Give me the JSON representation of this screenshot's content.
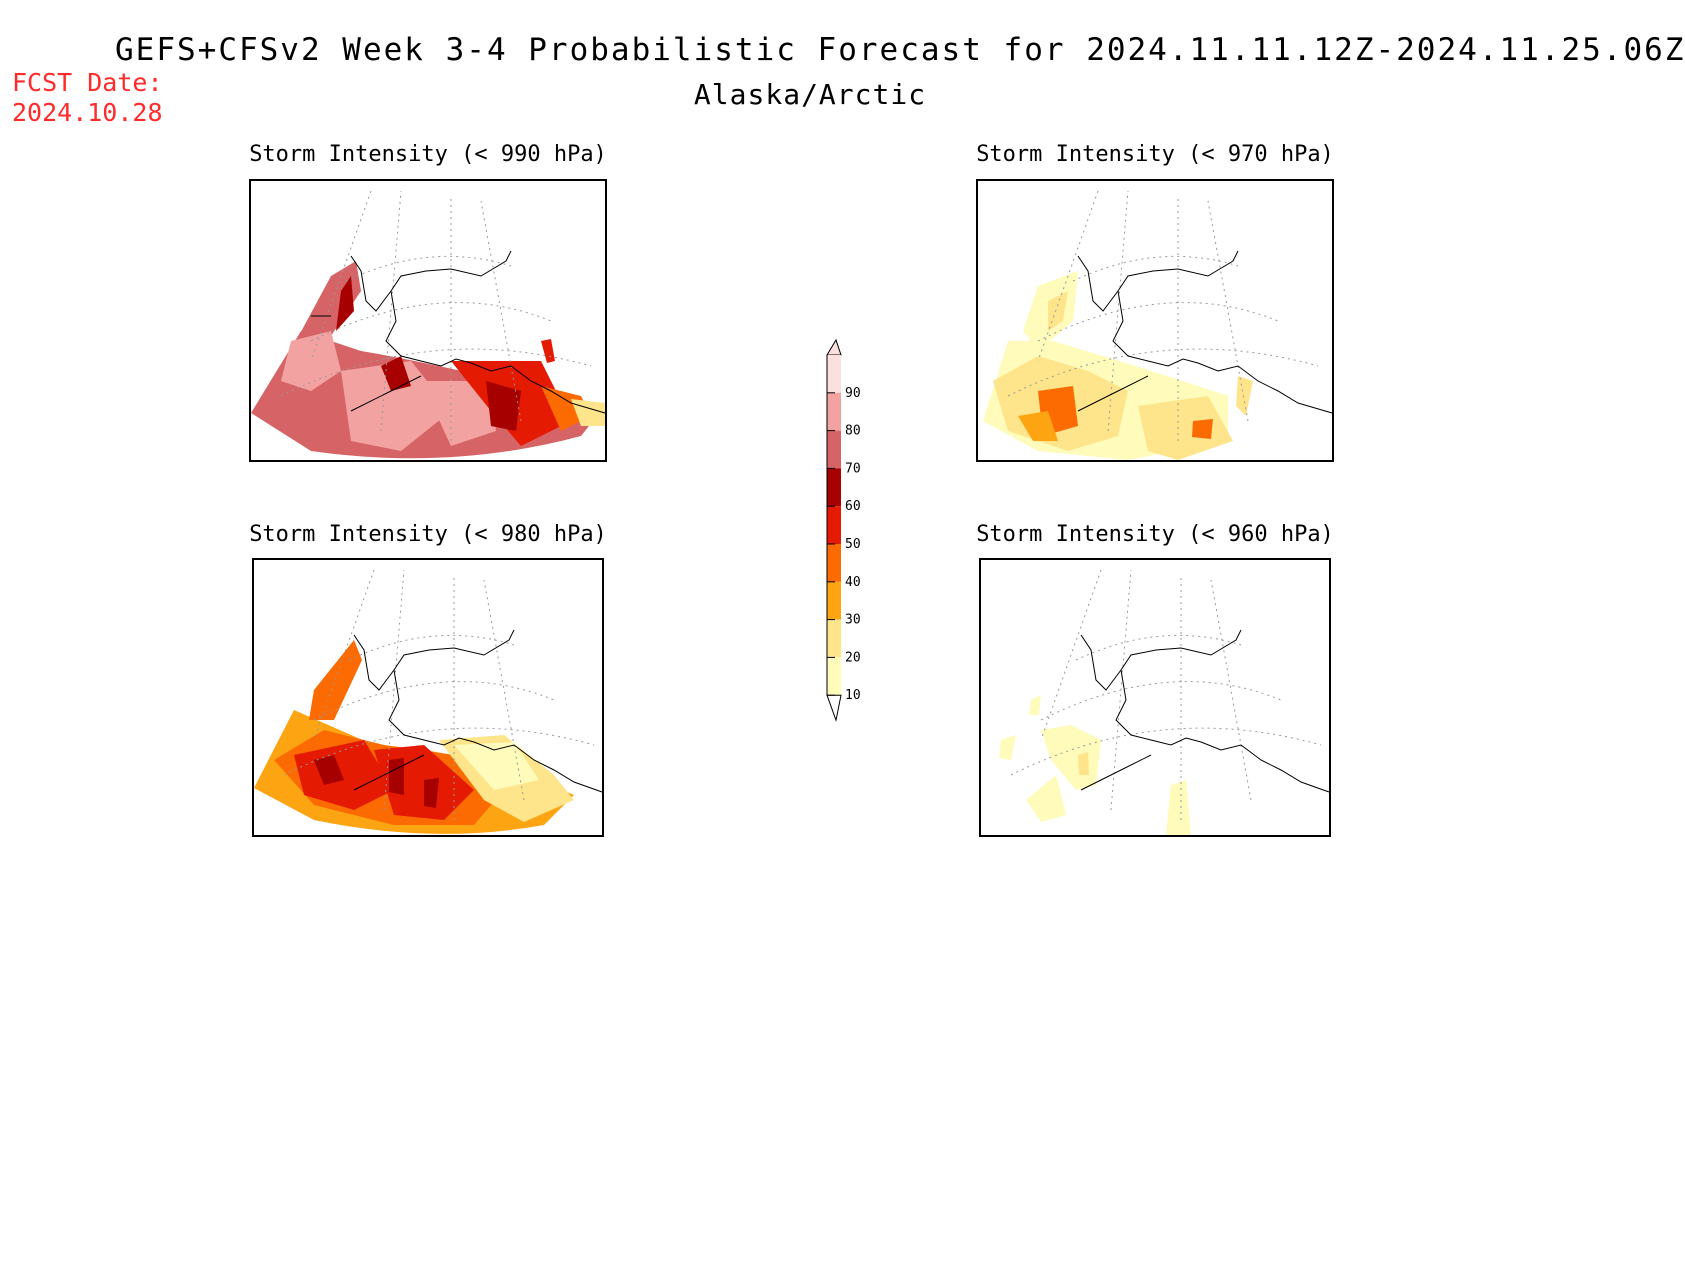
{
  "header": {
    "title": "GEFS+CFSv2 Week 3-4 Probabilistic Forecast for 2024.11.11.12Z-2024.11.25.06Z",
    "subtitle": "Alaska/Arctic",
    "fcst_label_line1": "FCST Date:",
    "fcst_label_line2": "2024.10.28",
    "fcst_label_color": "#ff2a2a"
  },
  "panels": [
    {
      "id": "p990",
      "title": "Storm Intensity (< 990 hPa)",
      "threshold_hpa": 990,
      "dominant_probability_range": [
        60,
        90
      ]
    },
    {
      "id": "p970",
      "title": "Storm Intensity (< 970 hPa)",
      "threshold_hpa": 970,
      "dominant_probability_range": [
        10,
        40
      ]
    },
    {
      "id": "p980",
      "title": "Storm Intensity (< 980 hPa)",
      "threshold_hpa": 980,
      "dominant_probability_range": [
        30,
        70
      ]
    },
    {
      "id": "p960",
      "title": "Storm Intensity (< 960 hPa)",
      "threshold_hpa": 960,
      "dominant_probability_range": [
        10,
        20
      ]
    }
  ],
  "colorbar": {
    "ticks": [
      "10",
      "20",
      "30",
      "40",
      "50",
      "60",
      "70",
      "80",
      "90"
    ],
    "colors": [
      "#fffbbb",
      "#fee48a",
      "#fda413",
      "#fc6a02",
      "#e41a02",
      "#a60000",
      "#d66466",
      "#f3a2a2",
      "#fbe0e0"
    ]
  }
}
